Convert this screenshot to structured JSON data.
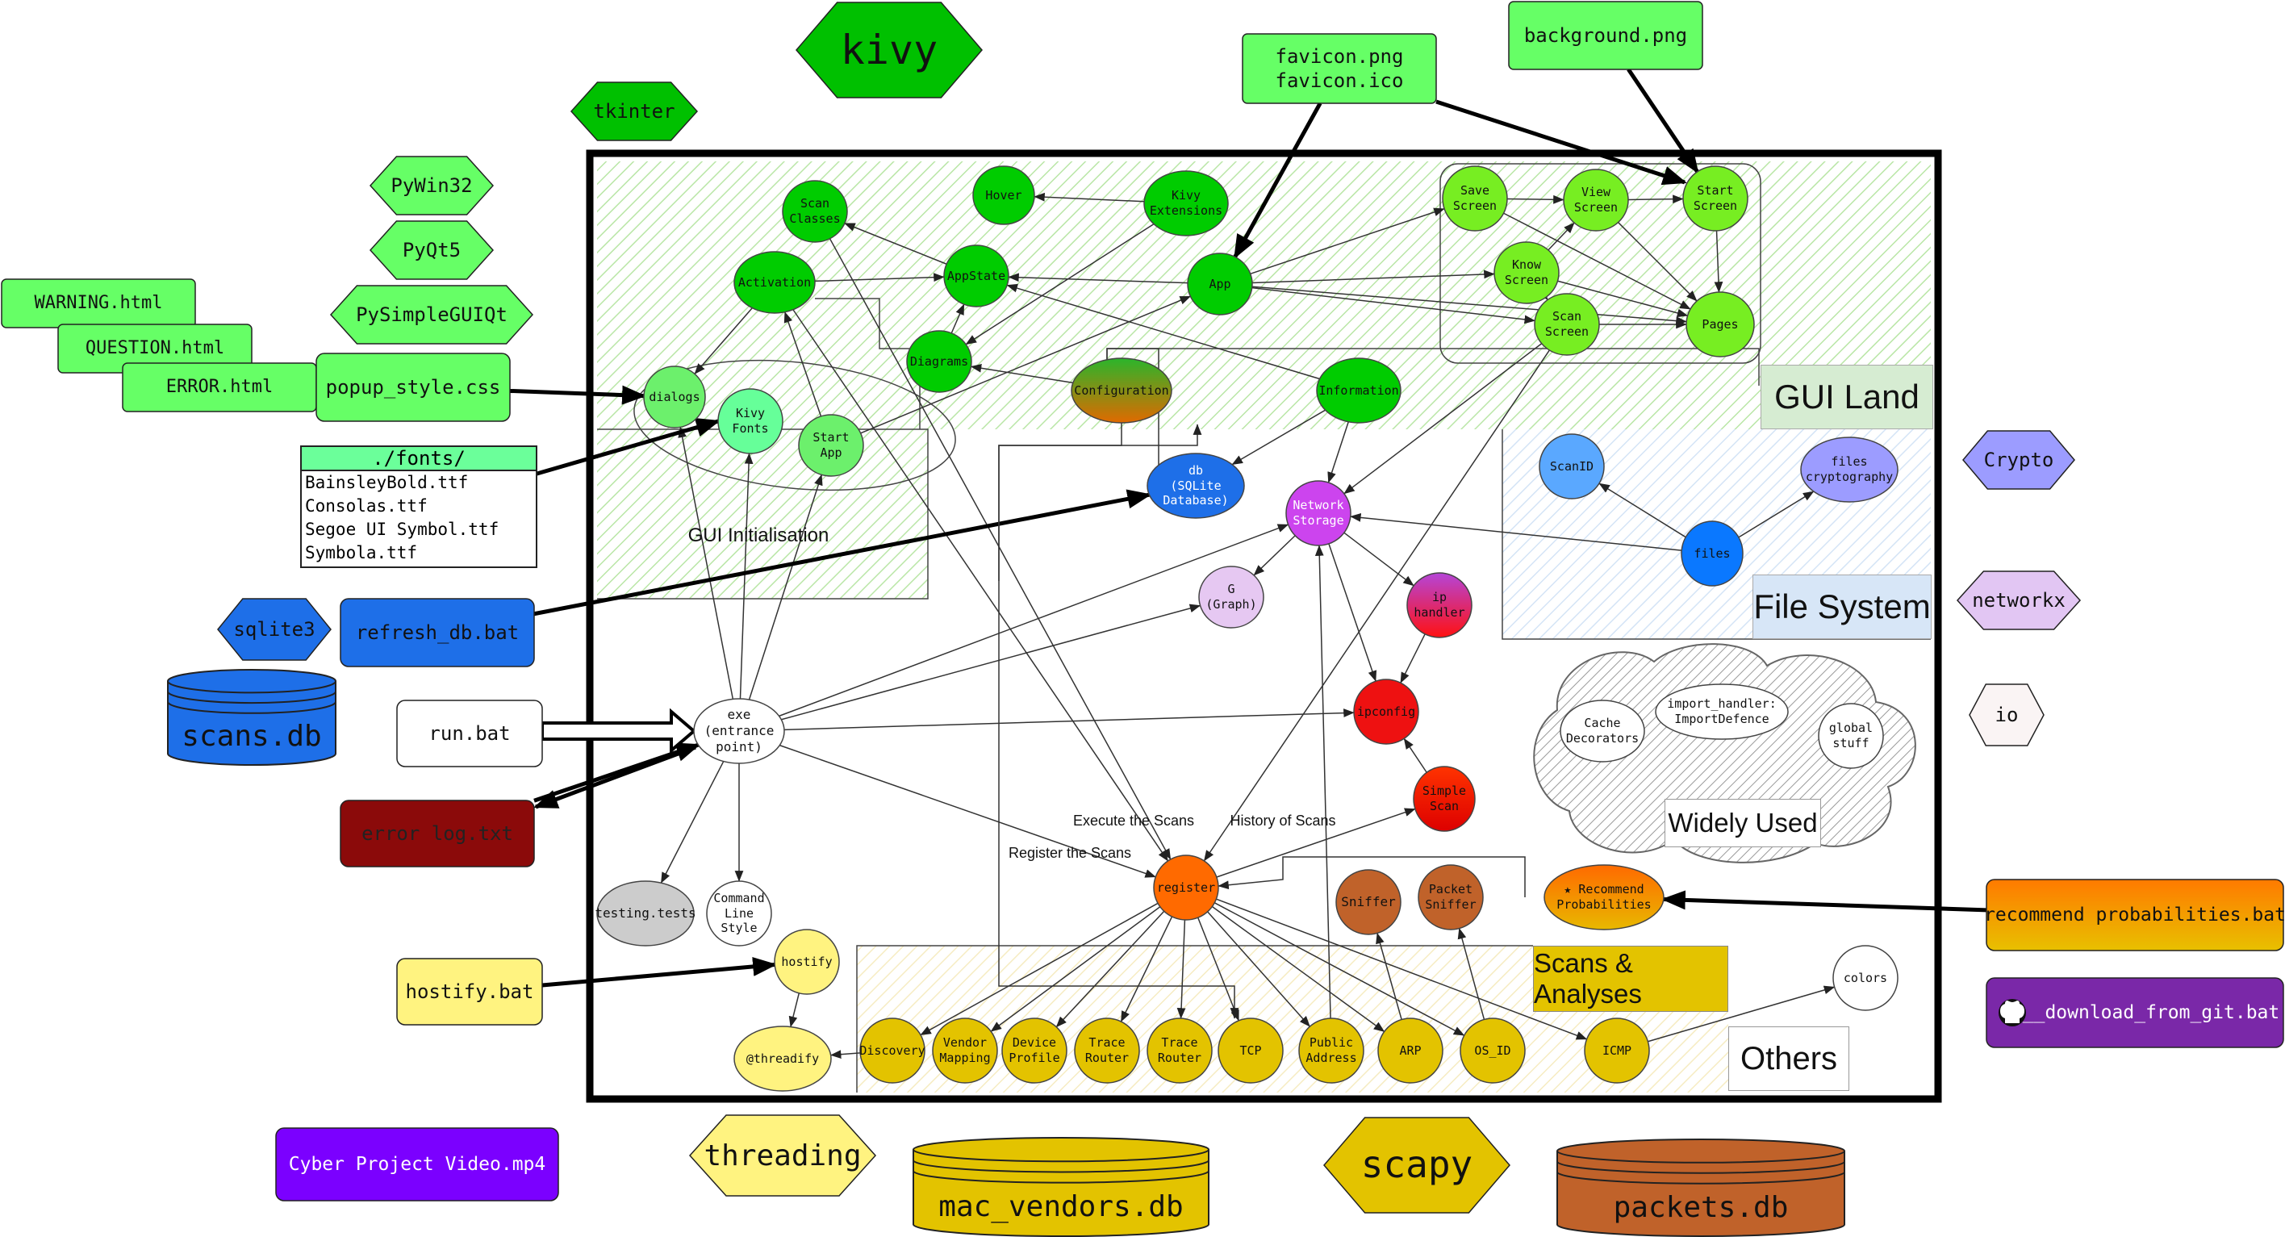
{
  "colors": {
    "kivy": "#00c000",
    "gui_green": "#00cc00",
    "light_green": "#77ee22",
    "box_green": "#66ff66",
    "blue": "#1e6fe8",
    "dark_red": "#8b0a0a",
    "purple": "#7a28a8",
    "violet": "#7b00ff",
    "yellow": "#e3c300",
    "light_yellow": "#fff380",
    "orange": "#ff6a00",
    "brown": "#c0622a",
    "red": "#ee1111",
    "magenta": "#cc44ee"
  },
  "regions": {
    "gui_land": "GUI Land",
    "file_system": "File System",
    "widely_used": "Widely Used",
    "scans_analyses": "Scans & Analyses",
    "others": "Others",
    "gui_init": "GUI Initialisation"
  },
  "libraries": {
    "kivy": "kivy",
    "tkinter": "tkinter",
    "pywin32": "PyWin32",
    "pyqt5": "PyQt5",
    "pysimpleguiqt": "PySimpleGUIQt",
    "sqlite3": "sqlite3",
    "crypto": "Crypto",
    "networkx": "networkx",
    "io": "io",
    "threading": "threading",
    "scapy": "scapy"
  },
  "files": {
    "warning": "WARNING.html",
    "question": "QUESTION.html",
    "error": "ERROR.html",
    "popup_css": "popup_style.css",
    "favicon": "favicon.png\nfavicon.ico",
    "background": "background.png",
    "refresh_db": "refresh_db.bat",
    "run": "run.bat",
    "error_log": "error log.txt",
    "hostify_bat": "hostify.bat",
    "video": "Cyber Project Video.mp4",
    "recommend_bat": "recommend probabilities.bat",
    "download_git": "__download_from_git.bat",
    "fonts_title": "./fonts/",
    "fonts": [
      "BainsleyBold.ttf",
      "Consolas.ttf",
      "Segoe UI Symbol.ttf",
      "Symbola.ttf"
    ]
  },
  "databases": {
    "scans": "scans.db",
    "mac_vendors": "mac_vendors.db",
    "packets": "packets.db"
  },
  "nodes": {
    "scan_classes": "Scan\nClasses",
    "hover": "Hover",
    "kivy_extensions": "Kivy\nExtensions",
    "activation": "Activation",
    "appstate": "AppState",
    "app": "App",
    "diagrams": "Diagrams",
    "configuration": "Configuration",
    "information": "Information",
    "save_screen": "Save\nScreen",
    "view_screen": "View\nScreen",
    "start_screen": "Start\nScreen",
    "know_screen": "Know\nScreen",
    "scan_screen": "Scan\nScreen",
    "pages": "Pages",
    "dialogs": "dialogs",
    "kivy_fonts": "Kivy\nFonts",
    "start_app": "Start\nApp",
    "db": "db\n(SQLite\nDatabase)",
    "network_storage": "Network\nStorage",
    "g_graph": "G\n(Graph)",
    "ip_handler": "ip\nhandler",
    "ipconfig": "ipconfig",
    "simple_scan": "Simple\nScan",
    "scanid": "ScanID",
    "files_crypto": "files\ncryptography",
    "files": "files",
    "cache_decorators": "Cache\nDecorators",
    "import_handler": "import_handler:\nImportDefence",
    "global_stuff": "global\nstuff",
    "exe": "exe\n(entrance\npoint)",
    "testing": "testing.tests",
    "cmd_style": "Command\nLine\nStyle",
    "register": "register",
    "sniffer": "Sniffer",
    "packet_sniffer": "Packet\nSniffer",
    "recommend": "★ Recommend\nProbabilities",
    "hostify": "hostify",
    "threadify": "@threadify",
    "discovery": "Discovery",
    "vendor_mapping": "Vendor\nMapping",
    "device_profile": "Device\nProfile",
    "trace_router_1": "Trace\nRouter",
    "trace_router_2": "Trace\nRouter",
    "tcp": "TCP",
    "public_address": "Public\nAddress",
    "arp": "ARP",
    "os_id": "OS_ID",
    "icmp": "ICMP",
    "colors": "colors"
  },
  "edge_labels": {
    "execute": "Execute the Scans",
    "register": "Register the Scans",
    "history": "History of Scans"
  }
}
